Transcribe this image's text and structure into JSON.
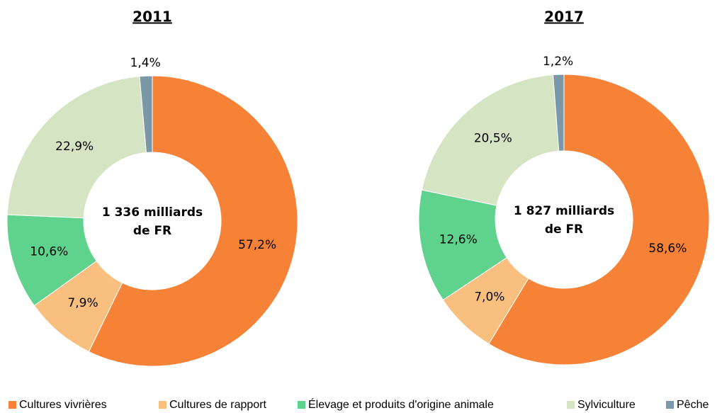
{
  "chart_data": [
    {
      "type": "donut",
      "title": "2011",
      "annotation": [
        "1 336 milliards",
        "de FR"
      ],
      "categories": [
        "Cultures vivrières",
        "Cultures de rapport",
        "Élevage et produits d'origine animale",
        "Sylviculture",
        "Pêche"
      ],
      "values": [
        57.2,
        7.9,
        10.6,
        22.9,
        1.4
      ],
      "value_labels": [
        "57,2%",
        "7,9%",
        "10,6%",
        "22,9%",
        "1,4%"
      ],
      "colors": [
        "#f58236",
        "#f9bf7f",
        "#5fd38d",
        "#d5e5c4",
        "#7a98a8"
      ]
    },
    {
      "type": "donut",
      "title": "2017",
      "annotation": [
        "1 827 milliards",
        "de FR"
      ],
      "categories": [
        "Cultures vivrières",
        "Cultures de rapport",
        "Élevage et produits d'origine animale",
        "Sylviculture",
        "Pêche"
      ],
      "values": [
        58.6,
        7.0,
        12.6,
        20.5,
        1.2
      ],
      "value_labels": [
        "58,6%",
        "7,0%",
        "12,6%",
        "20,5%",
        "1,2%"
      ],
      "colors": [
        "#f58236",
        "#f9bf7f",
        "#5fd38d",
        "#d5e5c4",
        "#7a98a8"
      ]
    }
  ]
}
